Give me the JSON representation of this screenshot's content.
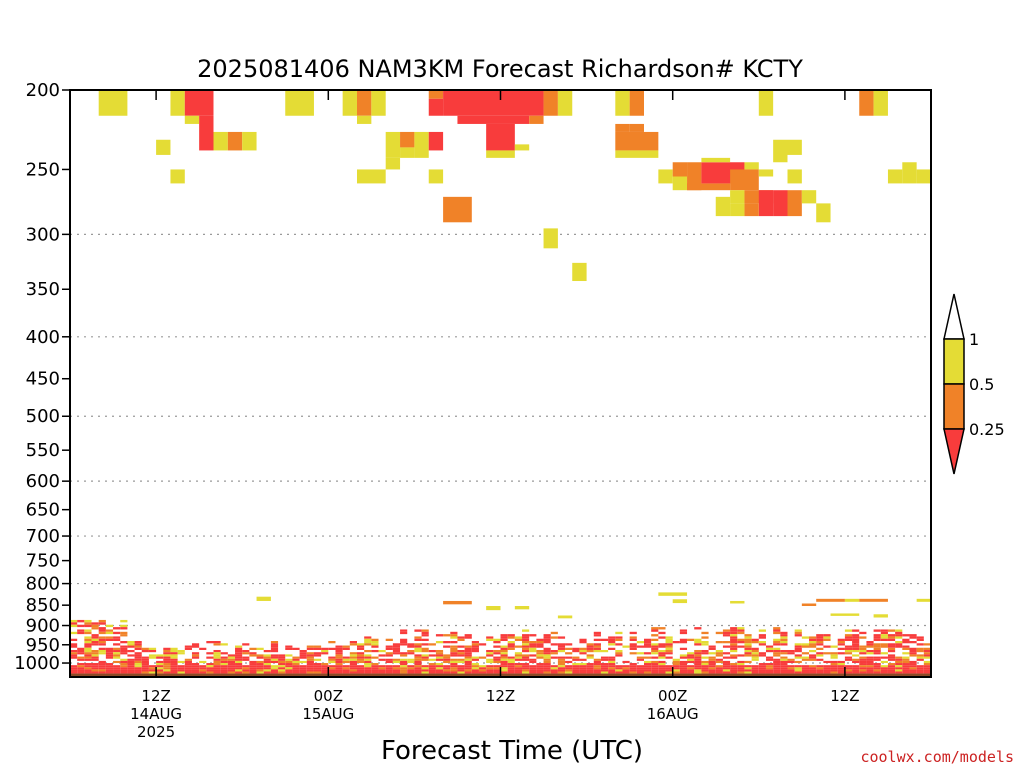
{
  "chart_data": {
    "type": "heatmap",
    "title": "2025081406 NAM3KM Forecast Richardson# KCTY",
    "xlabel": "Forecast Time (UTC)",
    "ylabel": "",
    "credit": "coolwx.com/models",
    "xlim": [
      0,
      60
    ],
    "ylim": [
      1040,
      200
    ],
    "y_scale": "log",
    "yticks": [
      200,
      250,
      300,
      350,
      400,
      450,
      500,
      550,
      600,
      650,
      700,
      750,
      800,
      850,
      900,
      950,
      1000
    ],
    "y_gridlines": [
      300,
      400,
      500,
      600,
      700,
      800,
      900,
      1000
    ],
    "xticks": [
      {
        "hour": 6,
        "lines": [
          "12Z",
          "14AUG",
          "2025"
        ]
      },
      {
        "hour": 18,
        "lines": [
          "00Z",
          "15AUG"
        ]
      },
      {
        "hour": 30,
        "lines": [
          "12Z"
        ]
      },
      {
        "hour": 42,
        "lines": [
          "00Z",
          "16AUG"
        ]
      },
      {
        "hour": 54,
        "lines": [
          "12Z"
        ]
      }
    ],
    "legend": {
      "placement": "right",
      "labels": [
        "1",
        "0.5",
        "0.25"
      ],
      "bins": [
        {
          "range": "> 1",
          "color": "#ffffff"
        },
        {
          "range": "0.5 - 1",
          "color": "#e4dc35"
        },
        {
          "range": "0.25 - 0.5",
          "color": "#f08228"
        },
        {
          "range": "< 0.25",
          "color": "#f83c3c"
        }
      ]
    },
    "ground": {
      "pressure_top": 1030,
      "color": "#8b4a26"
    },
    "cells": [
      [
        2,
        4,
        200,
        215,
        "y"
      ],
      [
        7,
        8,
        200,
        215,
        "y"
      ],
      [
        8,
        10,
        200,
        215,
        "r"
      ],
      [
        8,
        9,
        215,
        220,
        "y"
      ],
      [
        9,
        10,
        215,
        237,
        "r"
      ],
      [
        10,
        11,
        225,
        237,
        "y"
      ],
      [
        11,
        12,
        225,
        237,
        "o"
      ],
      [
        12,
        13,
        225,
        237,
        "y"
      ],
      [
        15,
        17,
        200,
        215,
        "y"
      ],
      [
        19,
        20,
        200,
        215,
        "y"
      ],
      [
        20,
        21,
        200,
        215,
        "o"
      ],
      [
        21,
        22,
        200,
        215,
        "y"
      ],
      [
        20,
        21,
        215,
        220,
        "y"
      ],
      [
        22,
        23,
        225,
        242,
        "y"
      ],
      [
        23,
        24,
        225,
        235,
        "o"
      ],
      [
        23,
        24,
        235,
        242,
        "y"
      ],
      [
        24,
        25,
        225,
        242,
        "y"
      ],
      [
        25,
        26,
        225,
        237,
        "r"
      ],
      [
        25,
        26,
        200,
        205,
        "o"
      ],
      [
        25,
        26,
        205,
        215,
        "r"
      ],
      [
        26,
        33,
        200,
        215,
        "r"
      ],
      [
        27,
        32,
        215,
        220,
        "r"
      ],
      [
        29,
        31,
        220,
        237,
        "r"
      ],
      [
        29,
        31,
        237,
        242,
        "y"
      ],
      [
        31,
        32,
        233,
        237,
        "y"
      ],
      [
        33,
        34,
        200,
        215,
        "o"
      ],
      [
        34,
        35,
        200,
        215,
        "y"
      ],
      [
        32,
        33,
        215,
        220,
        "o"
      ],
      [
        38,
        39,
        200,
        215,
        "y"
      ],
      [
        39,
        40,
        200,
        215,
        "o"
      ],
      [
        38,
        39,
        220,
        225,
        "o"
      ],
      [
        39,
        40,
        220,
        225,
        "o"
      ],
      [
        38,
        41,
        225,
        237,
        "o"
      ],
      [
        38,
        41,
        237,
        242,
        "y"
      ],
      [
        26,
        28,
        270,
        290,
        "o"
      ],
      [
        33,
        34,
        295,
        312,
        "y"
      ],
      [
        35,
        36,
        325,
        342,
        "y"
      ],
      [
        6,
        7,
        230,
        240,
        "y"
      ],
      [
        7,
        8,
        250,
        260,
        "y"
      ],
      [
        20,
        22,
        250,
        260,
        "y"
      ],
      [
        22,
        23,
        242,
        250,
        "y"
      ],
      [
        25,
        26,
        250,
        260,
        "y"
      ],
      [
        41,
        42,
        250,
        260,
        "y"
      ],
      [
        42,
        43,
        245,
        255,
        "o"
      ],
      [
        42,
        43,
        255,
        265,
        "y"
      ],
      [
        43,
        44,
        245,
        265,
        "o"
      ],
      [
        43,
        46,
        260,
        265,
        "o"
      ],
      [
        44,
        47,
        245,
        260,
        "r"
      ],
      [
        44,
        46,
        242,
        245,
        "y"
      ],
      [
        47,
        48,
        245,
        250,
        "y"
      ],
      [
        46,
        48,
        250,
        265,
        "o"
      ],
      [
        46,
        47,
        265,
        275,
        "y"
      ],
      [
        47,
        49,
        265,
        275,
        "o"
      ],
      [
        48,
        49,
        265,
        285,
        "r"
      ],
      [
        49,
        50,
        265,
        285,
        "r"
      ],
      [
        47,
        48,
        275,
        285,
        "o"
      ],
      [
        50,
        51,
        265,
        285,
        "o"
      ],
      [
        51,
        52,
        265,
        275,
        "y"
      ],
      [
        45,
        46,
        270,
        285,
        "y"
      ],
      [
        46,
        47,
        275,
        285,
        "y"
      ],
      [
        48,
        49,
        250,
        255,
        "y"
      ],
      [
        49,
        50,
        230,
        245,
        "y"
      ],
      [
        48,
        49,
        200,
        215,
        "y"
      ],
      [
        50,
        51,
        230,
        240,
        "y"
      ],
      [
        50,
        51,
        250,
        260,
        "y"
      ],
      [
        52,
        53,
        275,
        290,
        "y"
      ],
      [
        55,
        56,
        200,
        215,
        "o"
      ],
      [
        56,
        57,
        200,
        215,
        "y"
      ],
      [
        57,
        58,
        250,
        260,
        "y"
      ],
      [
        58,
        59,
        245,
        260,
        "y"
      ],
      [
        59,
        60,
        250,
        260,
        "y"
      ]
    ],
    "lower_cells": [
      [
        13,
        14,
        830,
        840,
        "y"
      ],
      [
        26,
        28,
        840,
        848,
        "o"
      ],
      [
        29,
        30,
        852,
        862,
        "y"
      ],
      [
        31,
        32,
        852,
        860,
        "y"
      ],
      [
        41,
        43,
        820,
        828,
        "y"
      ],
      [
        42,
        43,
        836,
        845,
        "y"
      ],
      [
        46,
        47,
        840,
        846,
        "y"
      ],
      [
        51,
        52,
        846,
        852,
        "o"
      ],
      [
        52,
        54,
        835,
        842,
        "o"
      ],
      [
        54,
        55,
        835,
        842,
        "y"
      ],
      [
        55,
        57,
        835,
        842,
        "o"
      ],
      [
        59,
        60,
        835,
        842,
        "y"
      ],
      [
        34,
        35,
        875,
        882,
        "y"
      ],
      [
        56,
        57,
        872,
        880,
        "y"
      ],
      [
        53,
        55,
        870,
        876,
        "y"
      ]
    ],
    "band_seed": 7
  }
}
